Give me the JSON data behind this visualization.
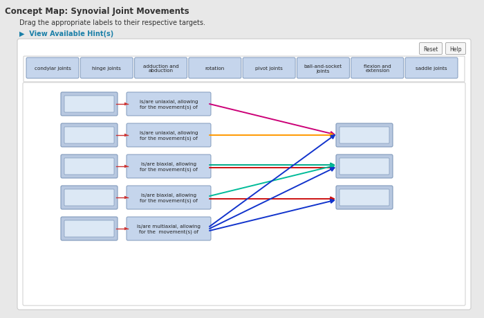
{
  "title": "Concept Map: Synovial Joint Movements",
  "subtitle": "Drag the appropriate labels to their respective targets.",
  "hint_text": "▶  View Available Hint(s)",
  "fig_bg": "#e8e8e8",
  "panel_bg": "#ffffff",
  "box_fill": "#b8c8e0",
  "box_edge": "#8099bb",
  "label_fill": "#c5d5ec",
  "label_edge": "#8099bb",
  "top_labels": [
    "condylar joints",
    "hinge joints",
    "adduction and\nabduction",
    "rotation",
    "pivot joints",
    "ball-and-socket\njoints",
    "flexion and\nextension",
    "saddle joints"
  ],
  "row_labels": [
    "is/are uniaxial, allowing\nfor the movement(s) of",
    "is/are uniaxial, allowing\nfor the movement(s) of",
    "is/are biaxial, allowing\nfor the movement(s) of",
    "is/are biaxial, allowing\nfor the movement(s) of",
    "is/are multiaxial, allowing\nfor the  movement(s) of"
  ],
  "arrow_data": [
    {
      "fr": 0,
      "tr": 0,
      "color": "#cc0077",
      "oy": 0
    },
    {
      "fr": 1,
      "tr": 0,
      "color": "#ff9900",
      "oy": 0
    },
    {
      "fr": 2,
      "tr": 1,
      "color": "#00aa88",
      "oy": -2
    },
    {
      "fr": 2,
      "tr": 1,
      "color": "#cc1111",
      "oy": 2
    },
    {
      "fr": 3,
      "tr": 1,
      "color": "#00bb99",
      "oy": -2
    },
    {
      "fr": 3,
      "tr": 2,
      "color": "#cc1111",
      "oy": 2
    },
    {
      "fr": 4,
      "tr": 0,
      "color": "#1133cc",
      "oy": -3
    },
    {
      "fr": 4,
      "tr": 1,
      "color": "#1133cc",
      "oy": 0
    },
    {
      "fr": 4,
      "tr": 2,
      "color": "#1133cc",
      "oy": 3
    }
  ],
  "reset_btn": "Reset",
  "help_btn": "Help"
}
